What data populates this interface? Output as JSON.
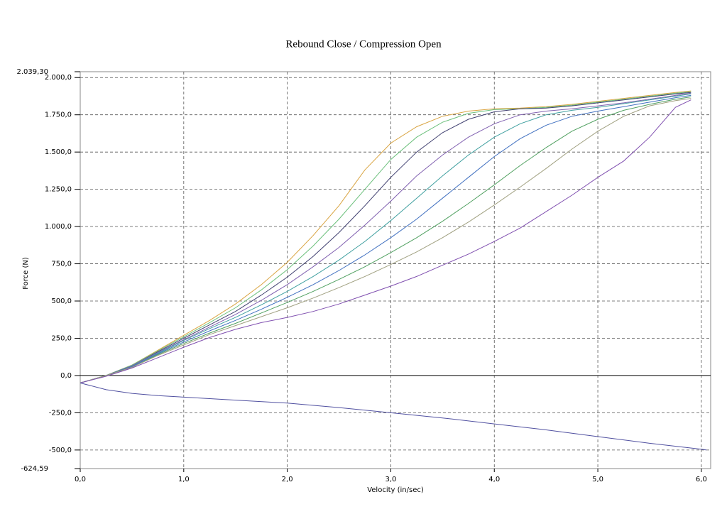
{
  "chart_data": {
    "type": "line",
    "title": "Rebound Close / Compression Open",
    "x_label": "Velocity (in/sec)",
    "y_label": "Force (N)",
    "grid": true,
    "xlim": [
      0,
      6.09
    ],
    "xticks": [
      {
        "value": 0,
        "label": "0,0"
      },
      {
        "value": 1,
        "label": "1,0"
      },
      {
        "value": 2,
        "label": "2,0"
      },
      {
        "value": 3,
        "label": "3,0"
      },
      {
        "value": 4,
        "label": "4,0"
      },
      {
        "value": 5,
        "label": "5,0"
      },
      {
        "value": 6,
        "label": "6,0"
      }
    ],
    "ylim": [
      -624.59,
      2039.3
    ],
    "yticks": [
      {
        "value": -624.59,
        "label": "-624,59"
      },
      {
        "value": -500,
        "label": "-500,0"
      },
      {
        "value": -250,
        "label": "-250,0"
      },
      {
        "value": 0,
        "label": "0,0"
      },
      {
        "value": 250,
        "label": "250,0"
      },
      {
        "value": 500,
        "label": "500,0"
      },
      {
        "value": 750,
        "label": "750,0"
      },
      {
        "value": 1000,
        "label": "1.000,0"
      },
      {
        "value": 1250,
        "label": "1.250,0"
      },
      {
        "value": 1500,
        "label": "1.500,0"
      },
      {
        "value": 1750,
        "label": "1.750,0"
      },
      {
        "value": 2000,
        "label": "2.000,0"
      },
      {
        "value": 2039.3,
        "label": "2.039,30"
      }
    ],
    "x": [
      0,
      0.25,
      0.5,
      0.75,
      1,
      1.25,
      1.5,
      1.75,
      2,
      2.25,
      2.5,
      2.75,
      3,
      3.25,
      3.5,
      3.75,
      4,
      4.25,
      4.5,
      4.75,
      5,
      5.25,
      5.5,
      5.75,
      5.9
    ],
    "series": [
      {
        "color": "#d9a441",
        "values": [
          -50,
          0,
          70,
          170,
          270,
          370,
          480,
          610,
          760,
          940,
          1140,
          1380,
          1560,
          1670,
          1740,
          1775,
          1790,
          1795,
          1805,
          1820,
          1840,
          1860,
          1880,
          1900,
          1910
        ]
      },
      {
        "color": "#6cc07c",
        "values": [
          -50,
          0,
          70,
          165,
          260,
          355,
          455,
          575,
          710,
          870,
          1050,
          1250,
          1450,
          1600,
          1700,
          1760,
          1785,
          1790,
          1800,
          1815,
          1835,
          1855,
          1875,
          1895,
          1905
        ]
      },
      {
        "color": "#404070",
        "values": [
          -50,
          0,
          65,
          160,
          250,
          340,
          430,
          540,
          660,
          800,
          960,
          1140,
          1330,
          1500,
          1630,
          1720,
          1770,
          1790,
          1795,
          1810,
          1830,
          1850,
          1870,
          1890,
          1900
        ]
      },
      {
        "color": "#8060b0",
        "values": [
          -50,
          0,
          65,
          155,
          240,
          325,
          410,
          505,
          610,
          730,
          860,
          1010,
          1170,
          1340,
          1480,
          1600,
          1690,
          1750,
          1775,
          1790,
          1810,
          1830,
          1855,
          1880,
          1895
        ]
      },
      {
        "color": "#40a0a0",
        "values": [
          -50,
          0,
          60,
          150,
          235,
          315,
          390,
          475,
          565,
          665,
          775,
          900,
          1040,
          1190,
          1340,
          1480,
          1600,
          1690,
          1750,
          1780,
          1800,
          1825,
          1850,
          1875,
          1890
        ]
      },
      {
        "color": "#4070c0",
        "values": [
          -50,
          0,
          60,
          145,
          225,
          300,
          370,
          445,
          525,
          610,
          705,
          810,
          925,
          1050,
          1190,
          1330,
          1470,
          1590,
          1680,
          1740,
          1775,
          1805,
          1835,
          1865,
          1880
        ]
      },
      {
        "color": "#50a060",
        "values": [
          -50,
          0,
          55,
          140,
          215,
          285,
          350,
          420,
          490,
          565,
          645,
          730,
          825,
          925,
          1035,
          1155,
          1280,
          1410,
          1530,
          1640,
          1720,
          1780,
          1820,
          1855,
          1870
        ]
      },
      {
        "color": "#a0a080",
        "values": [
          -50,
          0,
          55,
          135,
          205,
          275,
          335,
          395,
          455,
          520,
          590,
          665,
          745,
          830,
          925,
          1030,
          1145,
          1265,
          1390,
          1520,
          1640,
          1740,
          1810,
          1845,
          1860
        ]
      },
      {
        "color": "#8050b0",
        "values": [
          -50,
          -5,
          50,
          120,
          190,
          255,
          310,
          355,
          390,
          430,
          480,
          540,
          600,
          665,
          740,
          815,
          900,
          990,
          1100,
          1210,
          1330,
          1440,
          1600,
          1800,
          1850
        ]
      },
      {
        "color": "#5050a0",
        "x": [
          0,
          0.25,
          0.5,
          0.75,
          1,
          1.5,
          2,
          2.5,
          3,
          3.5,
          4,
          4.5,
          5,
          5.5,
          6,
          6.05
        ],
        "values": [
          -50,
          -95,
          -120,
          -135,
          -145,
          -165,
          -185,
          -215,
          -250,
          -285,
          -325,
          -365,
          -410,
          -455,
          -495,
          -500
        ]
      }
    ]
  }
}
